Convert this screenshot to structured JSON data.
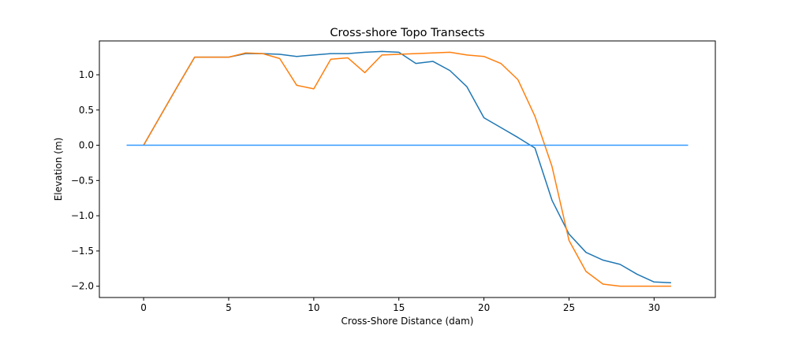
{
  "chart_data": {
    "type": "line",
    "title": "Cross-shore Topo Transects",
    "xlabel": "Cross-Shore Distance (dam)",
    "ylabel": "Elevation (m)",
    "xlim": [
      -2.6,
      33.6
    ],
    "ylim": [
      -2.16,
      1.48
    ],
    "xticks": [
      0,
      5,
      10,
      15,
      20,
      25,
      30
    ],
    "yticks": [
      -2.0,
      -1.5,
      -1.0,
      -0.5,
      0.0,
      0.5,
      1.0
    ],
    "grid": false,
    "legend": "none",
    "series": [
      {
        "color": "#1f77b4",
        "x": [
          0,
          1,
          2,
          3,
          4,
          5,
          6,
          7,
          8,
          9,
          10,
          11,
          12,
          13,
          14,
          15,
          16,
          17,
          18,
          19,
          20,
          21,
          22,
          23,
          24,
          25,
          26,
          27,
          28,
          29,
          30,
          31
        ],
        "y": [
          0.0,
          0.42,
          0.84,
          1.25,
          1.25,
          1.25,
          1.3,
          1.3,
          1.29,
          1.26,
          1.28,
          1.3,
          1.3,
          1.32,
          1.33,
          1.32,
          1.16,
          1.19,
          1.06,
          0.83,
          0.39,
          0.25,
          0.11,
          -0.04,
          -0.78,
          -1.26,
          -1.52,
          -1.63,
          -1.69,
          -1.83,
          -1.94,
          -1.95
        ]
      },
      {
        "color": "#ff7f0e",
        "x": [
          0,
          1,
          2,
          3,
          4,
          5,
          6,
          7,
          8,
          9,
          10,
          11,
          12,
          13,
          14,
          15,
          16,
          17,
          18,
          19,
          20,
          21,
          22,
          23,
          24,
          25,
          26,
          27,
          28,
          29,
          30,
          31
        ],
        "y": [
          0.0,
          0.42,
          0.84,
          1.25,
          1.25,
          1.25,
          1.31,
          1.3,
          1.23,
          0.85,
          0.8,
          1.22,
          1.24,
          1.03,
          1.28,
          1.29,
          1.3,
          1.31,
          1.32,
          1.28,
          1.26,
          1.16,
          0.93,
          0.41,
          -0.3,
          -1.35,
          -1.79,
          -1.97,
          -2.0,
          -2.0,
          -2.0,
          -2.0
        ]
      },
      {
        "color": "#3399ff",
        "x": [
          -1,
          32
        ],
        "y": [
          0.0,
          0.0
        ]
      }
    ]
  }
}
